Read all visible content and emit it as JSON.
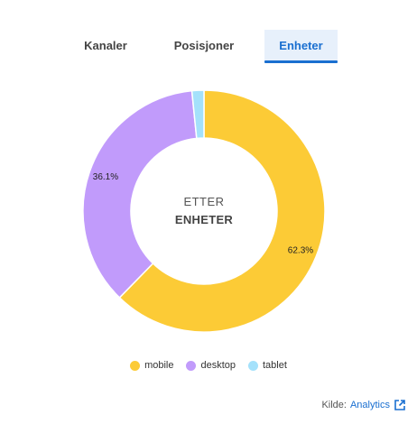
{
  "tabs": [
    {
      "label": "Kanaler",
      "active": false
    },
    {
      "label": "Posisjoner",
      "active": false
    },
    {
      "label": "Enheter",
      "active": true
    }
  ],
  "chart_data": {
    "type": "pie",
    "variant": "donut",
    "center_title": "ETTER",
    "center_subtitle": "ENHETER",
    "categories": [
      "mobile",
      "desktop",
      "tablet"
    ],
    "values": [
      62.3,
      36.1,
      1.6
    ],
    "labels": [
      "62.3%",
      "36.1%",
      ""
    ],
    "colors": [
      "#fccb36",
      "#c19bfb",
      "#a4e1fb"
    ],
    "legend_position": "bottom"
  },
  "source": {
    "prefix": "Kilde:",
    "link": "Analytics",
    "icon": "external-link-icon"
  }
}
